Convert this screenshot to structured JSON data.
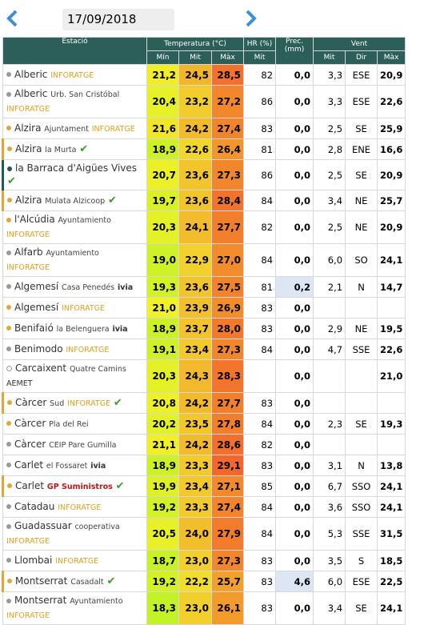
{
  "date": "17/09/2018",
  "header": {
    "station": "Estació",
    "temperature": "Temperatura (°C)",
    "humidity": "HR (%)",
    "precipitation": "Prec. (mm)",
    "wind": "Vent",
    "sub": [
      "Mín",
      "Mit",
      "Màx",
      "Mit",
      "Mit",
      "Dir",
      "Màx"
    ]
  },
  "table": {
    "rows": [
      {
        "name": "Alberic",
        "tag": "INFORATGE",
        "dot": "#9a9a9a",
        "values": [
          "21,2",
          "24,5",
          "28,5",
          "82",
          "0,0",
          "3,3",
          "ESE",
          "20,9"
        ]
      },
      {
        "name": "Alberic",
        "sub": "Urb. San Cristóbal",
        "tag": "INFORATGE",
        "dot": "#9a9a9a",
        "values": [
          "20,4",
          "23,2",
          "27,2",
          "86",
          "0,0",
          "3,3",
          "ESE",
          "22,6"
        ]
      },
      {
        "name": "Alzira",
        "sub": "Ajuntament",
        "tag": "INFORATGE",
        "dot": "#e0a83a",
        "values": [
          "21,6",
          "24,2",
          "27,4",
          "83",
          "0,0",
          "2,5",
          "SE",
          "25,9"
        ]
      },
      {
        "name": "Alzira",
        "sub": "la Murta",
        "check": true,
        "dot": "#e0a83a",
        "values": [
          "18,9",
          "22,6",
          "26,4",
          "81",
          "0,0",
          "2,8",
          "ENE",
          "16,6"
        ]
      },
      {
        "name": "la Barraca d'Aigües Vives",
        "check": true,
        "dot": "#1f5a55",
        "values": [
          "20,7",
          "23,6",
          "27,3",
          "86",
          "0,0",
          "2,5",
          "SE",
          "20,9"
        ]
      },
      {
        "name": "Alzira",
        "sub": "Mulata Alzicoop",
        "check": true,
        "dot": "#e0a83a",
        "values": [
          "19,7",
          "23,6",
          "28,4",
          "84",
          "0,0",
          "3,4",
          "NE",
          "25,7"
        ]
      },
      {
        "name": "l'Alcúdia",
        "sub": "Ayuntamiento",
        "tag": "INFORATGE",
        "dot": "#e0a83a",
        "values": [
          "20,3",
          "24,1",
          "27,7",
          "82",
          "0,0",
          "2,5",
          "NE",
          "20,9"
        ]
      },
      {
        "name": "Alfarb",
        "sub": "Ayuntamiento",
        "tag": "INFORATGE",
        "dot": "#9a9a9a",
        "values": [
          "19,0",
          "22,9",
          "27,0",
          "84",
          "0,0",
          "6,0",
          "SO",
          "24,1"
        ]
      },
      {
        "name": "Algemesí",
        "sub": "Casa Penedés",
        "tag": "ivia",
        "dot": "#9a9a9a",
        "values": [
          "19,3",
          "23,6",
          "27,5",
          "81",
          "0,2",
          "2,1",
          "N",
          "14,7"
        ]
      },
      {
        "name": "Algemesí",
        "tag": "INFORATGE",
        "dot": "#e0a83a",
        "values": [
          "21,0",
          "23,9",
          "26,9",
          "83",
          "0,0",
          null,
          null,
          null
        ]
      },
      {
        "name": "Benifaió",
        "sub": "la Belenguera",
        "tag": "ivia",
        "dot": "#e0a83a",
        "values": [
          "18,9",
          "23,7",
          "28,0",
          "83",
          "0,0",
          "2,9",
          "NE",
          "19,5"
        ]
      },
      {
        "name": "Benimodo",
        "tag": "INFORATGE",
        "dot": "#9a9a9a",
        "values": [
          "19,1",
          "23,4",
          "27,3",
          "84",
          "0,0",
          "4,7",
          "SSE",
          "22,6"
        ]
      },
      {
        "name": "Carcaixent",
        "sub": "Quatre Camins",
        "tag": "AEMET",
        "dot": "hollow",
        "values": [
          "20,3",
          "24,3",
          "28,3",
          null,
          "0,0",
          null,
          null,
          "21,0"
        ]
      },
      {
        "name": "Càrcer",
        "sub": "Sud",
        "tag": "INFORATGE",
        "check": true,
        "dot": "#e0a83a",
        "values": [
          "20,8",
          "24,2",
          "27,7",
          "83",
          "0,0",
          null,
          null,
          null
        ]
      },
      {
        "name": "Càrcer",
        "sub": "Pla del Rei",
        "dot": "#e0a83a",
        "values": [
          "20,2",
          "23,5",
          "27,8",
          "84",
          "0,0",
          "2,3",
          "SE",
          "19,3"
        ]
      },
      {
        "name": "Càrcer",
        "sub": "CEIP Pare Gumilla",
        "dot": "#9a9a9a",
        "values": [
          "21,1",
          "24,2",
          "28,6",
          "82",
          "0,0",
          null,
          null,
          null
        ]
      },
      {
        "name": "Carlet",
        "sub": "el Fossaret",
        "tag": "ivia",
        "dot": "#9a9a9a",
        "values": [
          "18,9",
          "23,3",
          "29,1",
          "83",
          "0,0",
          "3,1",
          "N",
          "13,8"
        ]
      },
      {
        "name": "Carlet",
        "tag": "GP Suministros",
        "check": true,
        "dot": "#e0a83a",
        "values": [
          "19,9",
          "23,4",
          "27,1",
          "85",
          "0,0",
          "6,7",
          "SSO",
          "24,1"
        ]
      },
      {
        "name": "Catadau",
        "tag": "INFORATGE",
        "dot": "#9a9a9a",
        "values": [
          "19,2",
          "23,3",
          "27,4",
          "84",
          "0,0",
          "3,6",
          "SSO",
          "24,1"
        ]
      },
      {
        "name": "Guadassuar",
        "sub": "cooperativa",
        "tag": "INFORATGE",
        "dot": "#9a9a9a",
        "values": [
          "20,5",
          "24,0",
          "27,9",
          "84",
          "0,0",
          "5,3",
          "SSE",
          "31,5"
        ]
      },
      {
        "name": "Llombai",
        "tag": "INFORATGE",
        "dot": "#9a9a9a",
        "values": [
          "18,7",
          "23,0",
          "27,3",
          "83",
          "0,0",
          "3,5",
          "S",
          "18,5"
        ]
      },
      {
        "name": "Montserrat",
        "sub": "Casadalt",
        "check": true,
        "dot": "#e0a83a",
        "values": [
          "19,2",
          "22,2",
          "25,7",
          "83",
          "4,6",
          "6,0",
          "ESE",
          "22,5"
        ]
      },
      {
        "name": "Montserrat",
        "sub": "Ayuntamiento",
        "tag": "INFORATGE",
        "dot": "#9a9a9a",
        "values": [
          "18,3",
          "23,0",
          "26,1",
          "83",
          "0,0",
          "3,4",
          "SE",
          "24,1"
        ]
      }
    ]
  }
}
